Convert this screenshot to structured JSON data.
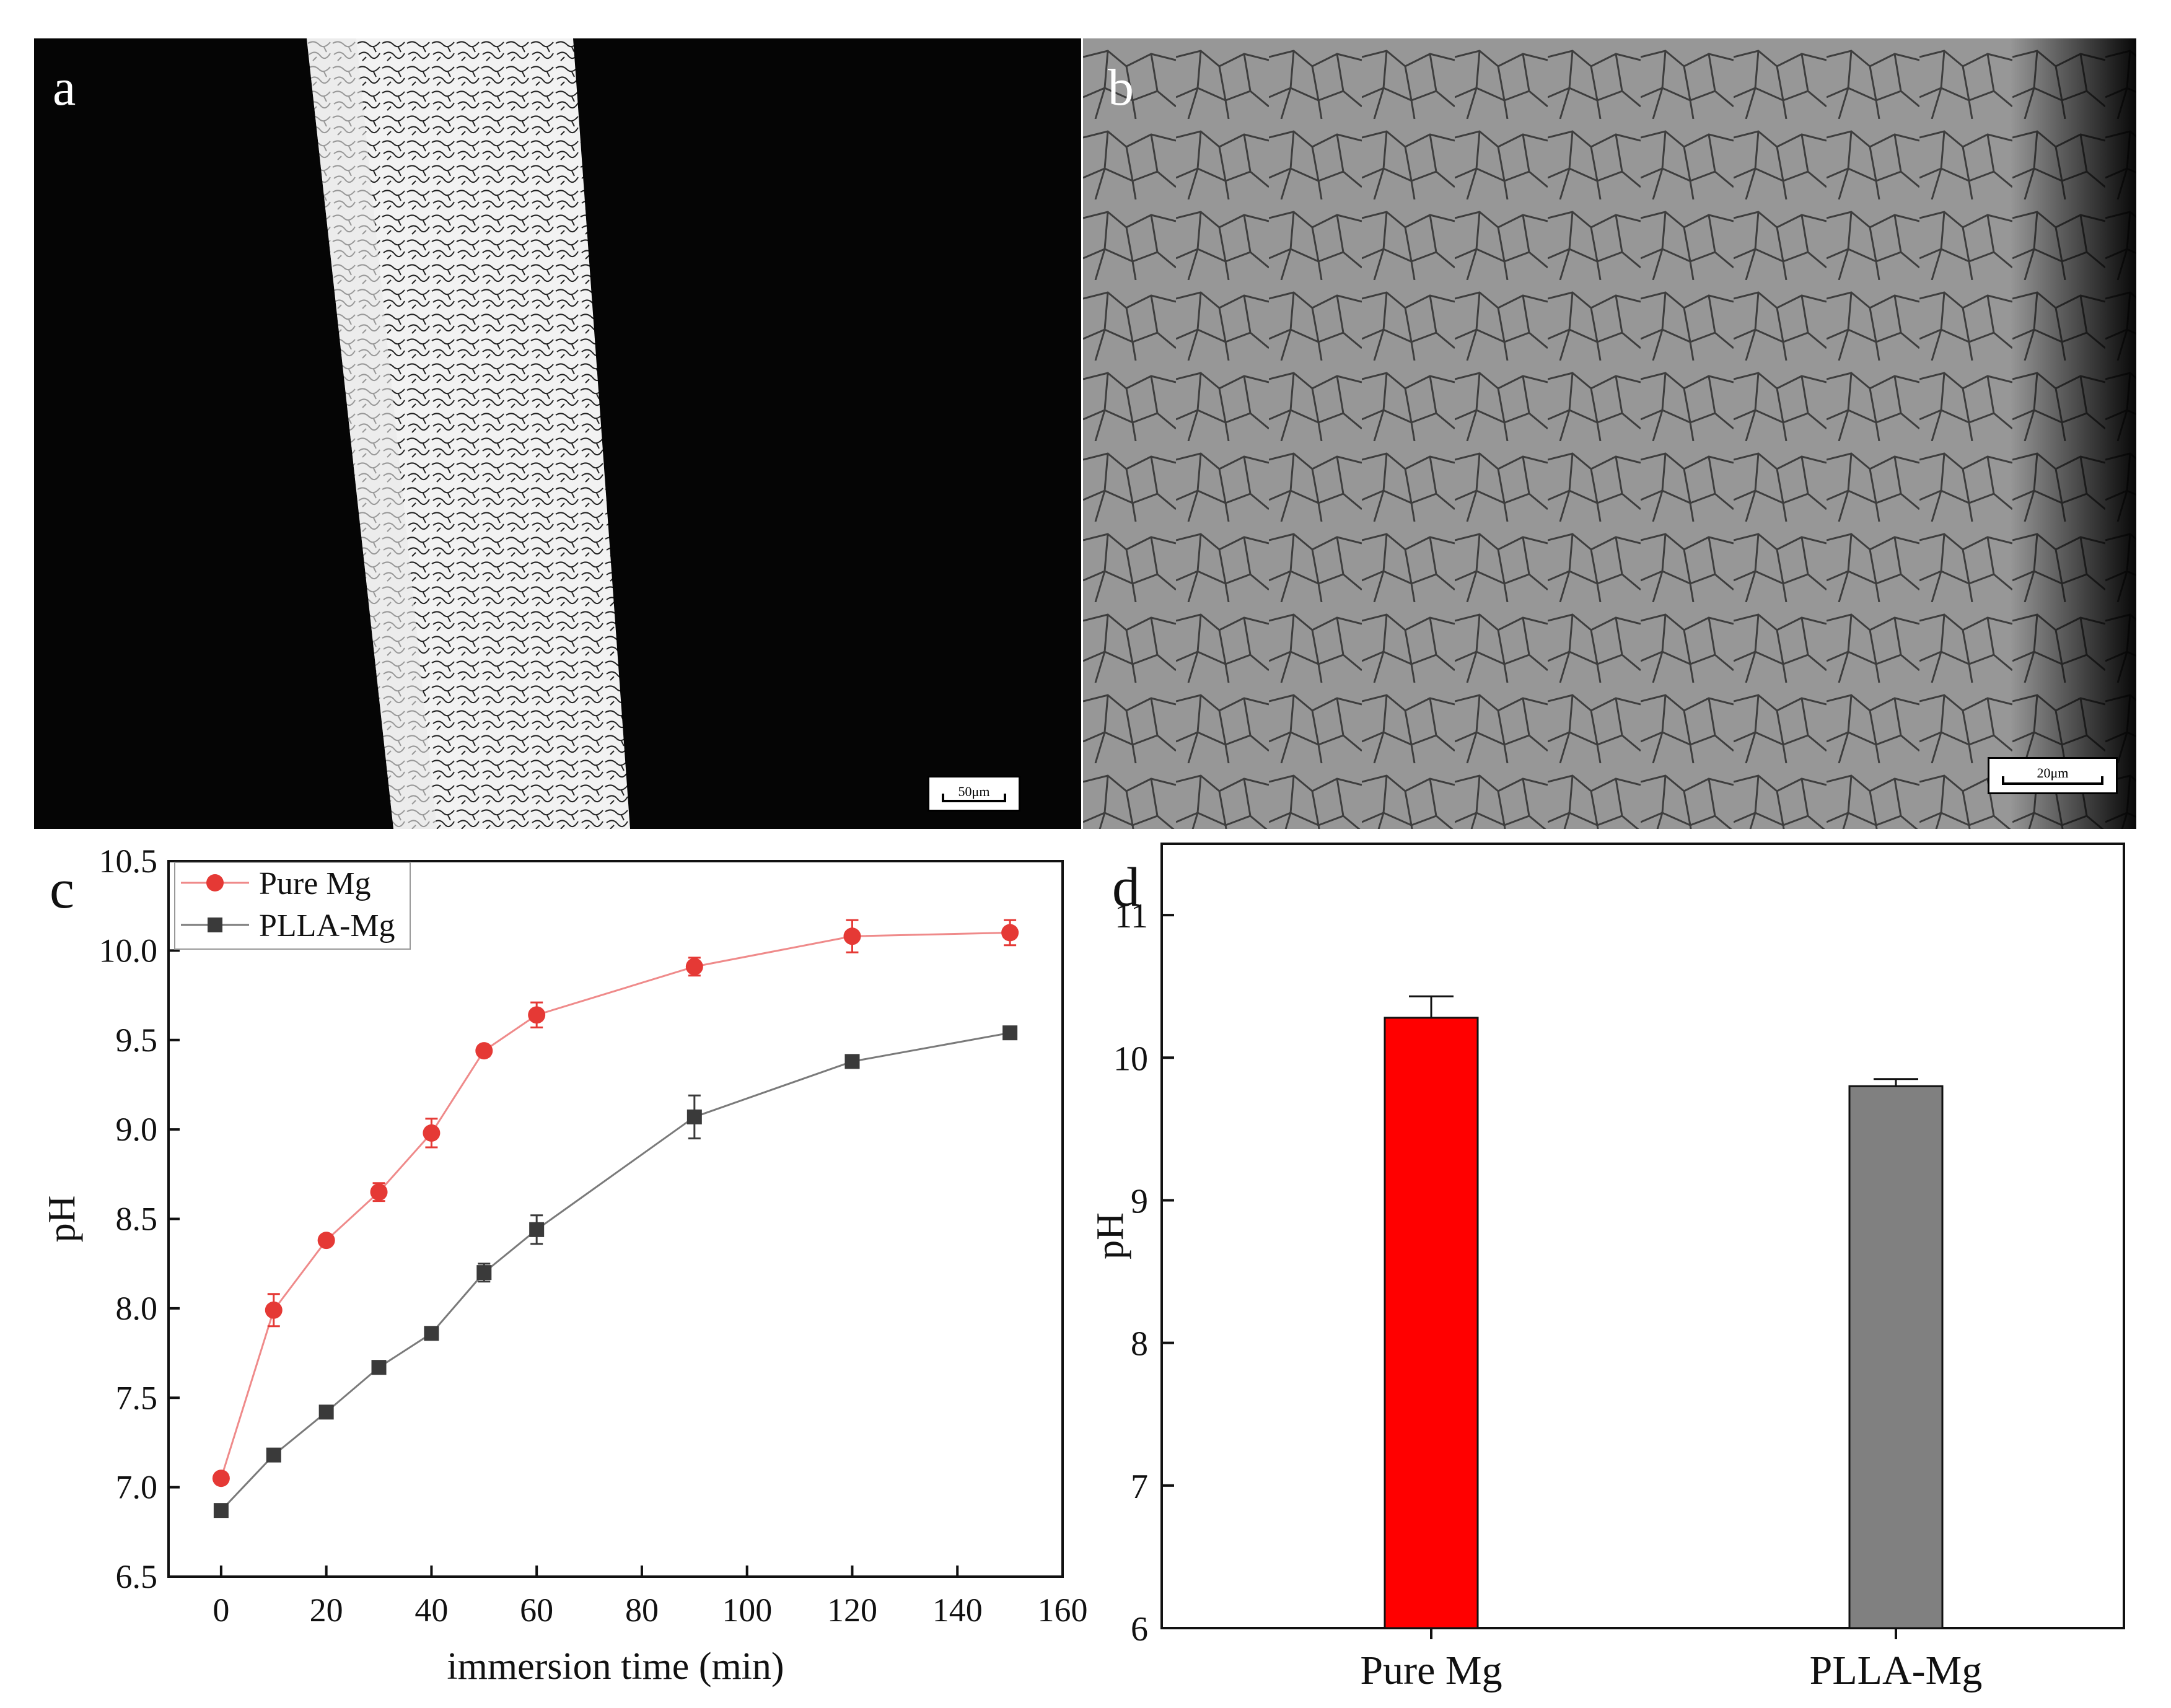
{
  "panels": {
    "a": {
      "letter": "a",
      "scale_label": "50μm"
    },
    "b": {
      "letter": "b",
      "scale_label": "20μm"
    },
    "c": {
      "letter": "c"
    },
    "d": {
      "letter": "d"
    }
  },
  "colors": {
    "pure_mg": "#e53935",
    "plla_mg": "#3a3a3a",
    "bar_pure": "#ff0000",
    "bar_plla": "#808080"
  },
  "chart_data": [
    {
      "panel": "c",
      "type": "line",
      "xlabel": "immersion time (min)",
      "ylabel": "pH",
      "xlim": [
        -10,
        160
      ],
      "ylim": [
        6.5,
        10.5
      ],
      "xticks": [
        0,
        20,
        40,
        60,
        80,
        100,
        120,
        140,
        160
      ],
      "yticks": [
        "6.5",
        "7.0",
        "7.5",
        "8.0",
        "8.5",
        "9.0",
        "9.5",
        "10.0",
        "10.5"
      ],
      "x": [
        0,
        10,
        20,
        30,
        40,
        50,
        60,
        90,
        120,
        150
      ],
      "legend_position": "top-left",
      "series": [
        {
          "name": "Pure Mg",
          "marker": "circle",
          "values": [
            7.05,
            7.99,
            8.38,
            8.65,
            8.98,
            9.44,
            9.64,
            9.91,
            10.08,
            10.1
          ],
          "errors": [
            0.02,
            0.09,
            0.02,
            0.05,
            0.08,
            0.03,
            0.07,
            0.05,
            0.09,
            0.07
          ]
        },
        {
          "name": "PLLA-Mg",
          "marker": "square",
          "values": [
            6.87,
            7.18,
            7.42,
            7.67,
            7.86,
            8.2,
            8.44,
            9.07,
            9.38,
            9.54
          ],
          "errors": [
            0.02,
            0.02,
            0.02,
            0.02,
            0.02,
            0.05,
            0.08,
            0.12,
            0.02,
            0.02
          ]
        }
      ]
    },
    {
      "panel": "d",
      "type": "bar",
      "ylabel": "pH",
      "ylim": [
        6,
        11.5
      ],
      "yticks": [
        "6",
        "7",
        "8",
        "9",
        "10",
        "11"
      ],
      "categories": [
        "Pure Mg",
        "PLLA-Mg"
      ],
      "values": [
        10.28,
        9.8
      ],
      "errors": [
        0.15,
        0.05
      ]
    }
  ]
}
